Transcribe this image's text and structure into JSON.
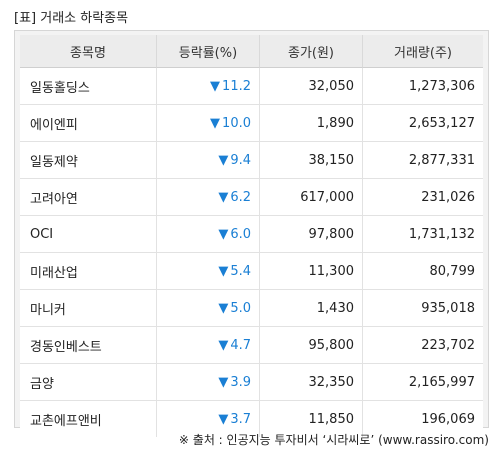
{
  "title": "[표] 거래소 하락종목",
  "columns": [
    "종목명",
    "등락률(%)",
    "종가(원)",
    "거래량(주)"
  ],
  "down_symbol": "▼",
  "rate_color": "#1a7fd4",
  "rows": [
    {
      "name": "일동홀딩스",
      "rate": "11.2",
      "close": "32,050",
      "volume": "1,273,306"
    },
    {
      "name": "에이엔피",
      "rate": "10.0",
      "close": "1,890",
      "volume": "2,653,127"
    },
    {
      "name": "일동제약",
      "rate": "9.4",
      "close": "38,150",
      "volume": "2,877,331"
    },
    {
      "name": "고려아연",
      "rate": "6.2",
      "close": "617,000",
      "volume": "231,026"
    },
    {
      "name": "OCI",
      "rate": "6.0",
      "close": "97,800",
      "volume": "1,731,132"
    },
    {
      "name": "미래산업",
      "rate": "5.4",
      "close": "11,300",
      "volume": "80,799"
    },
    {
      "name": "마니커",
      "rate": "5.0",
      "close": "1,430",
      "volume": "935,018"
    },
    {
      "name": "경동인베스트",
      "rate": "4.7",
      "close": "95,800",
      "volume": "223,702"
    },
    {
      "name": "금양",
      "rate": "3.9",
      "close": "32,350",
      "volume": "2,165,997"
    },
    {
      "name": "교촌에프앤비",
      "rate": "3.7",
      "close": "11,850",
      "volume": "196,069"
    }
  ],
  "source": "※ 출처 : 인공지능 투자비서 ‘시라씨로’ (www.rassiro.com)"
}
